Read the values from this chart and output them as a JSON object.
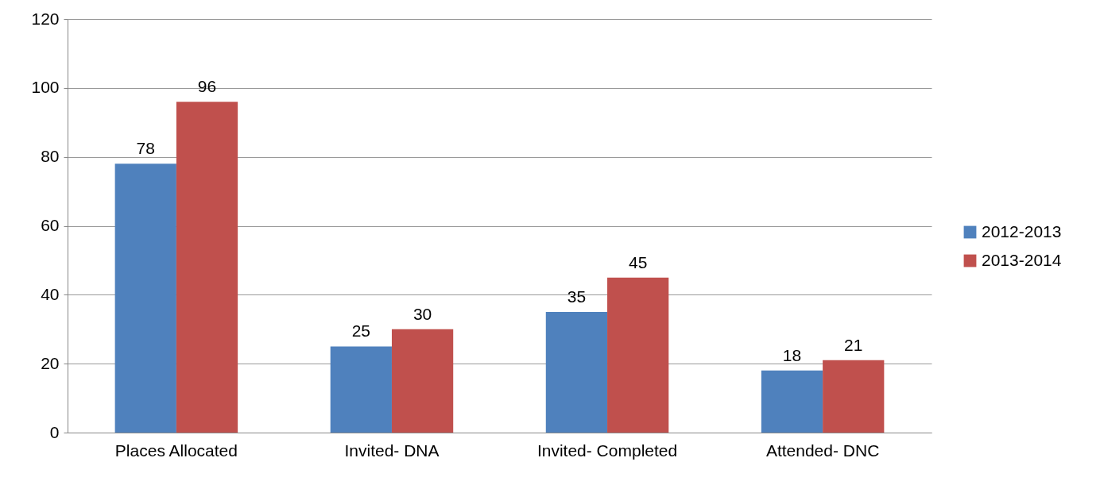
{
  "chart_data": {
    "type": "bar",
    "categories": [
      "Places Allocated",
      "Invited- DNA",
      "Invited- Completed",
      "Attended- DNC"
    ],
    "series": [
      {
        "name": "2012-2013",
        "color": "#4f81bd",
        "values": [
          78,
          25,
          35,
          18
        ]
      },
      {
        "name": "2013-2014",
        "color": "#c0504d",
        "values": [
          96,
          30,
          45,
          21
        ]
      }
    ],
    "ylim": [
      0,
      120
    ],
    "yticks": [
      0,
      20,
      40,
      60,
      80,
      100,
      120
    ],
    "grid": "y",
    "legend": "right",
    "data_labels": true
  }
}
